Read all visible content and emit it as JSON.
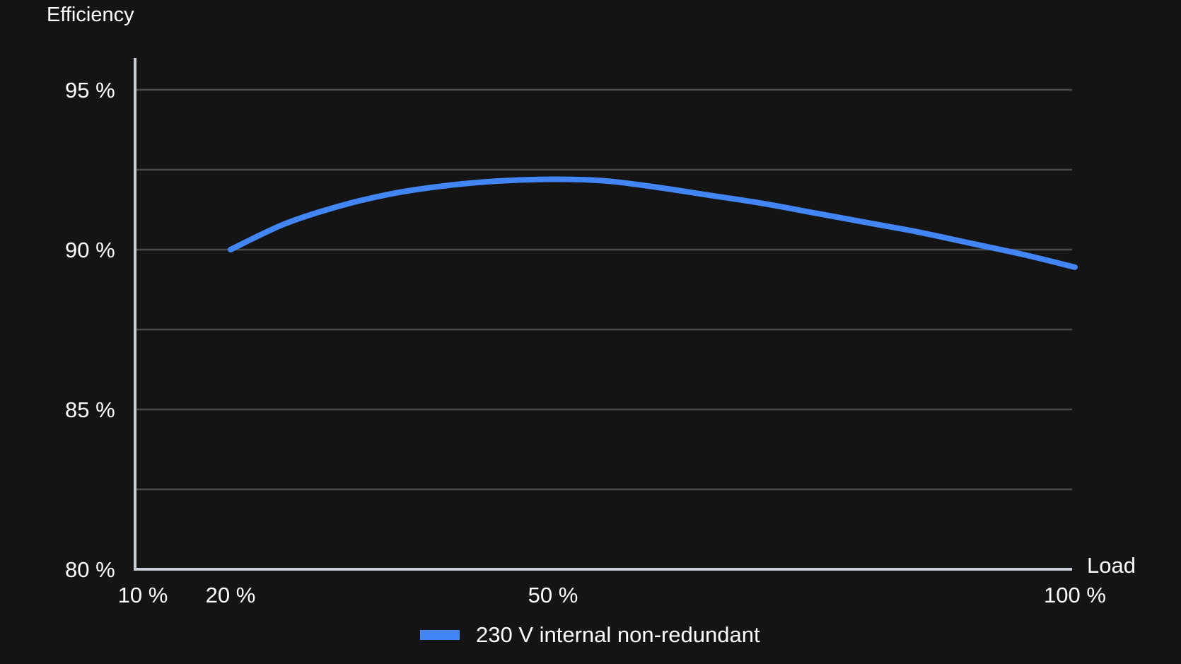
{
  "chart_data": {
    "type": "line",
    "ylabel": "Efficiency",
    "xlabel": "Load",
    "y_ticks": [
      {
        "value": 95,
        "label": "95 %"
      },
      {
        "value": 90,
        "label": "90 %"
      },
      {
        "value": 85,
        "label": "85 %"
      },
      {
        "value": 80,
        "label": "80 %"
      }
    ],
    "x_ticks": [
      {
        "value": 10,
        "label": "10 %"
      },
      {
        "value": 20,
        "label": "20 %"
      },
      {
        "value": 50,
        "label": "50 %"
      },
      {
        "value": 100,
        "label": "100 %"
      }
    ],
    "xlim": [
      10,
      100
    ],
    "ylim": [
      80,
      95.5
    ],
    "grid_lines_y": [
      82.5,
      85,
      87.5,
      90,
      92.5,
      95
    ],
    "grid": true,
    "legend_position": "bottom-center",
    "series": [
      {
        "name": "230 V internal non-redundant",
        "color": "#4285f4",
        "x": [
          20,
          25,
          30,
          35,
          40,
          45,
          50,
          55,
          60,
          65,
          70,
          75,
          80,
          85,
          90,
          95,
          100
        ],
        "y": [
          90.0,
          90.8,
          91.35,
          91.75,
          92.0,
          92.15,
          92.2,
          92.15,
          91.95,
          91.7,
          91.45,
          91.15,
          90.85,
          90.55,
          90.2,
          89.85,
          89.45
        ]
      }
    ],
    "colors": {
      "background": "#141414",
      "grid": "#4a4a4a",
      "axis": "#c8cdd6",
      "text": "#ffffff"
    }
  }
}
